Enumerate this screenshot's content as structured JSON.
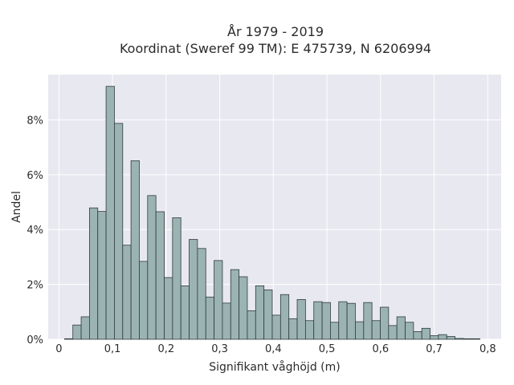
{
  "chart_data": {
    "type": "bar",
    "title_lines": [
      "År 1979 - 2019",
      "Koordinat (Sweref 99 TM): E 475739, N 6206994"
    ],
    "xlabel": "Signifikant våghöjd (m)",
    "ylabel": "Andel",
    "xlim": [
      -0.02,
      0.825
    ],
    "ylim": [
      0,
      0.0965
    ],
    "x_ticks": [
      0,
      0.1,
      0.2,
      0.3,
      0.4,
      0.5,
      0.6,
      0.7,
      0.8
    ],
    "x_tick_labels": [
      "0",
      "0,1",
      "0,2",
      "0,3",
      "0,4",
      "0,5",
      "0,6",
      "0,7",
      "0,8"
    ],
    "y_ticks": [
      0,
      0.02,
      0.04,
      0.06,
      0.08
    ],
    "y_tick_labels": [
      "0%",
      "2%",
      "4%",
      "6%",
      "8%"
    ],
    "grid": true,
    "bin_width": 0.0155,
    "bins_start": 0.0105,
    "values": [
      0.0002,
      0.0052,
      0.0082,
      0.0479,
      0.0466,
      0.0922,
      0.0787,
      0.0343,
      0.0651,
      0.0284,
      0.0524,
      0.0465,
      0.0225,
      0.0443,
      0.0195,
      0.0364,
      0.0331,
      0.0154,
      0.0287,
      0.0132,
      0.0254,
      0.0228,
      0.0104,
      0.0195,
      0.018,
      0.0088,
      0.0163,
      0.0075,
      0.0145,
      0.0068,
      0.0137,
      0.0134,
      0.0062,
      0.0137,
      0.0131,
      0.0064,
      0.0134,
      0.0068,
      0.0117,
      0.005,
      0.0082,
      0.0062,
      0.0028,
      0.004,
      0.0013,
      0.0017,
      0.001,
      0.0003,
      0.0002,
      0.0002
    ],
    "colors": {
      "bar_fill": "#9bb3b3",
      "bar_edge": "#2f3b3b",
      "plot_bg": "#e8e8f0",
      "grid": "#ffffff"
    }
  }
}
